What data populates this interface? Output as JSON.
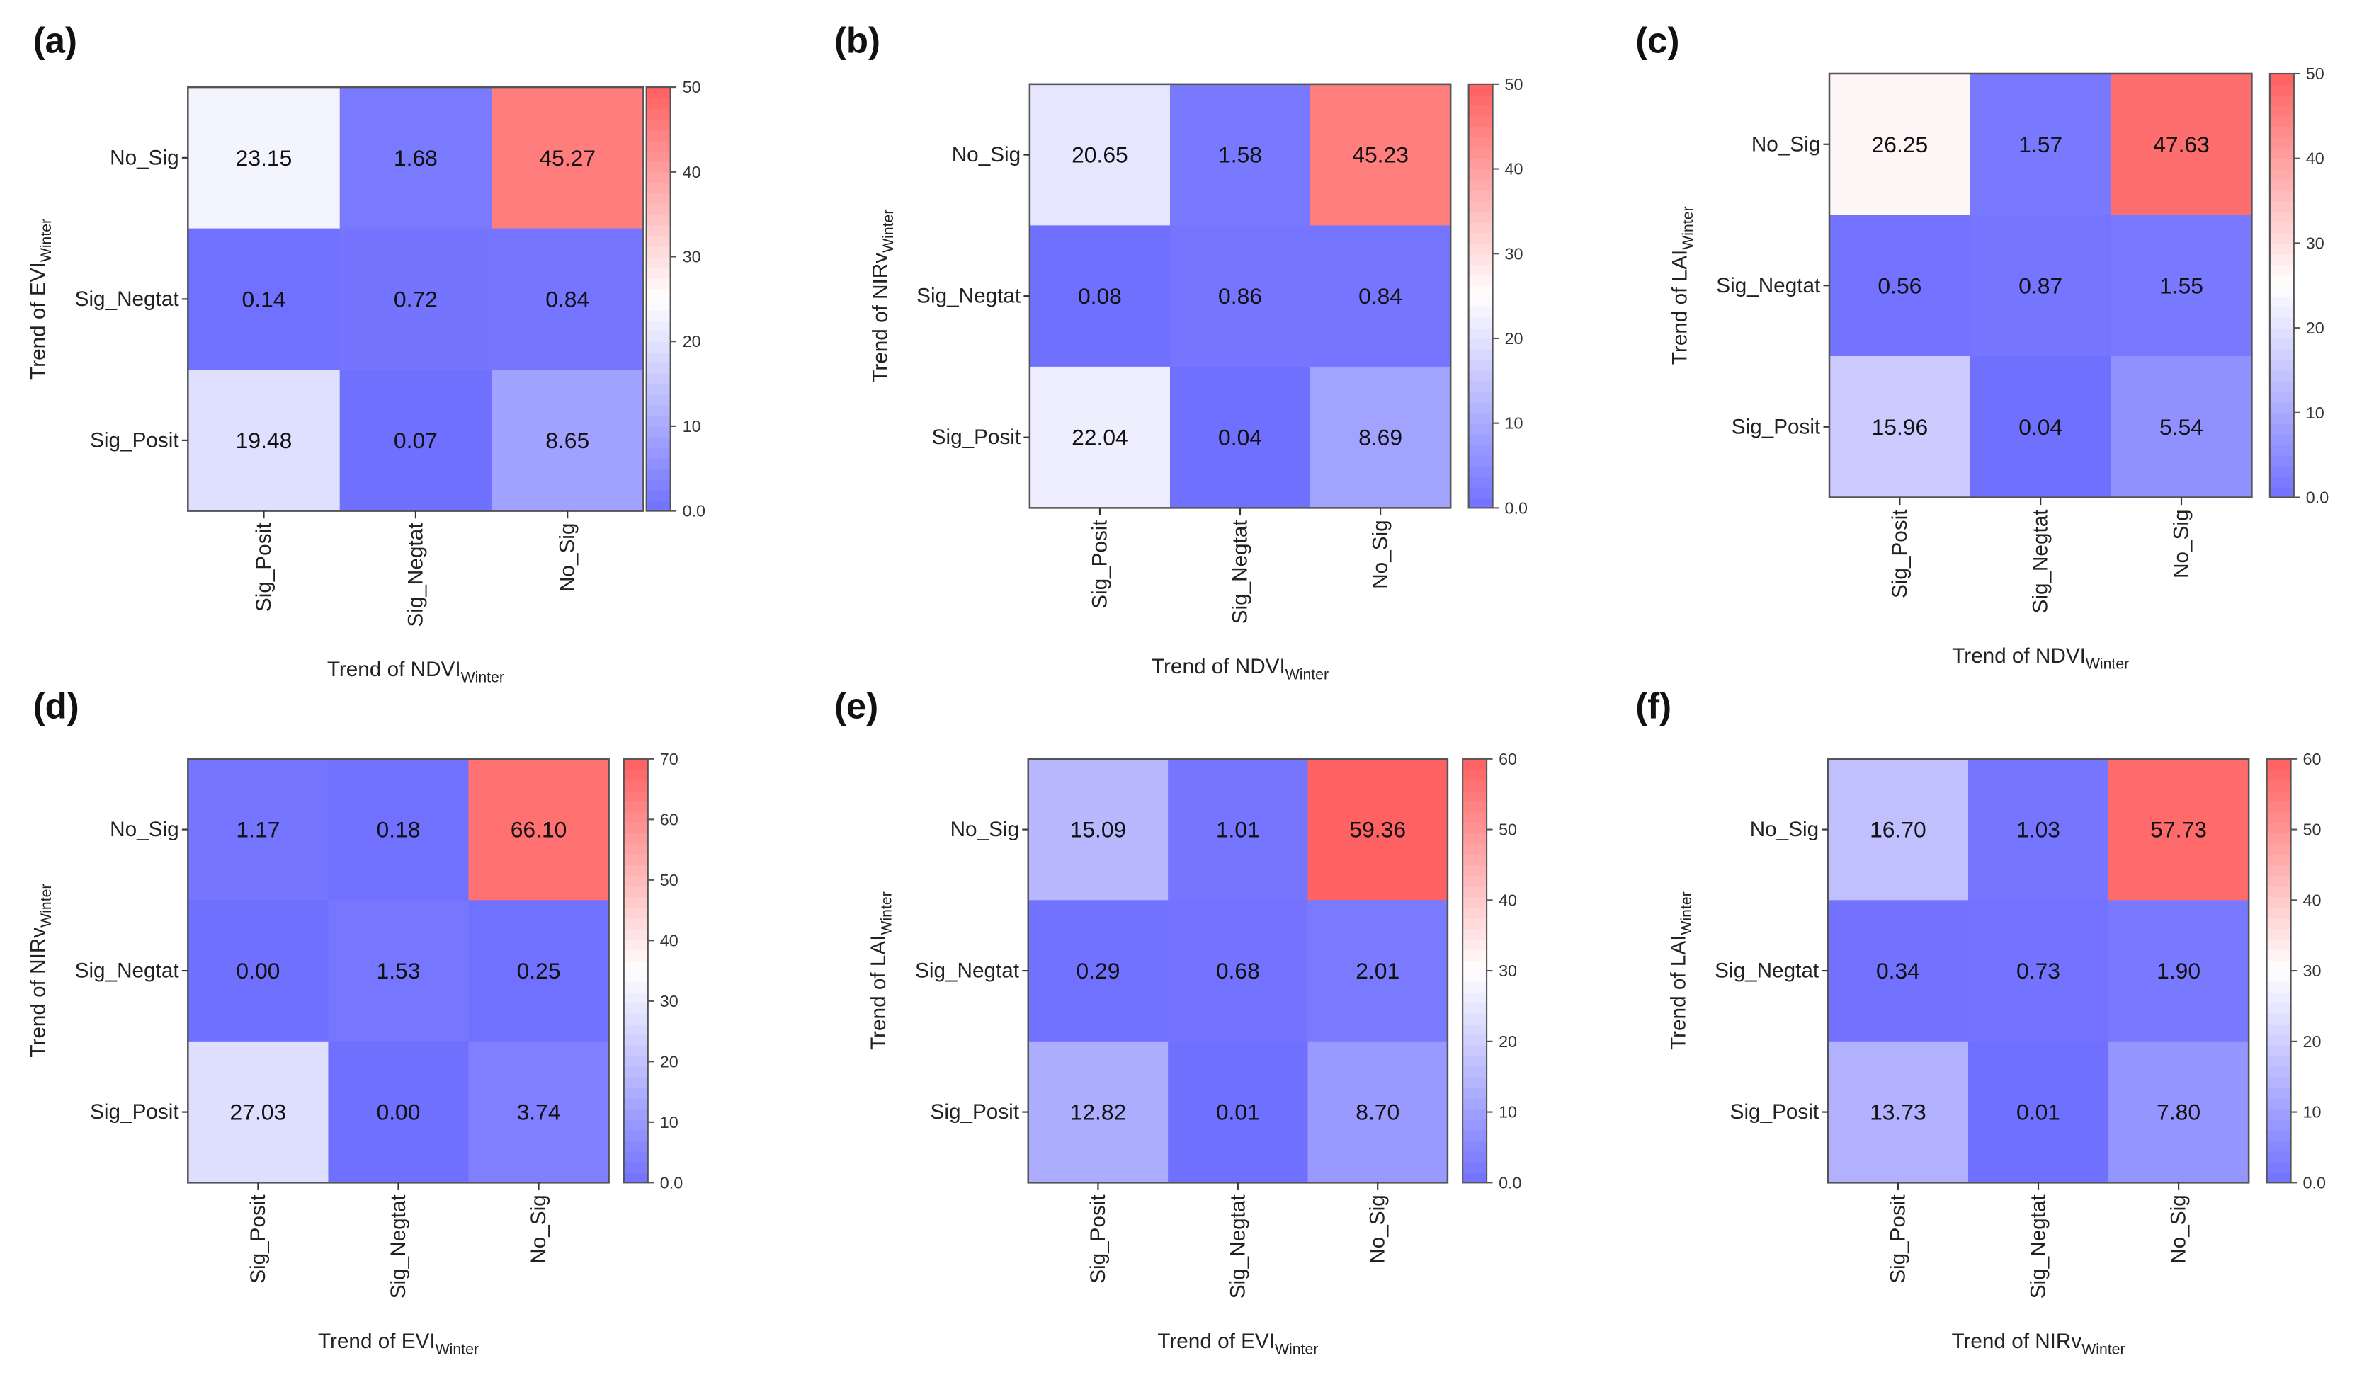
{
  "chart_data": [
    {
      "type": "heatmap",
      "panel_label": "(a)",
      "ylabel": {
        "main": "Trend of EVI",
        "sub": "Winter"
      },
      "xlabel": {
        "main": "Trend of NDVI",
        "sub": "Winter"
      },
      "rows": [
        "No_Sig",
        "Sig_Negtat",
        "Sig_Posit"
      ],
      "cols": [
        "Sig_Posit",
        "Sig_Negtat",
        "No_Sig"
      ],
      "values": [
        [
          23.15,
          1.68,
          45.27
        ],
        [
          0.14,
          0.72,
          0.84
        ],
        [
          19.48,
          0.07,
          8.65
        ]
      ],
      "labels": [
        [
          "23.15",
          "1.68",
          "45.27"
        ],
        [
          "0.14",
          "0.72",
          "0.84"
        ],
        [
          "19.48",
          "0.07",
          "8.65"
        ]
      ],
      "colorbar": {
        "range": [
          0,
          50
        ],
        "ticks": [
          "0.0",
          "10",
          "20",
          "30",
          "40",
          "50"
        ]
      }
    },
    {
      "type": "heatmap",
      "panel_label": "(b)",
      "ylabel": {
        "main": "Trend of NIRv",
        "sub": "Winter"
      },
      "xlabel": {
        "main": "Trend of NDVI",
        "sub": "Winter"
      },
      "rows": [
        "No_Sig",
        "Sig_Negtat",
        "Sig_Posit"
      ],
      "cols": [
        "Sig_Posit",
        "Sig_Negtat",
        "No_Sig"
      ],
      "values": [
        [
          20.65,
          1.58,
          45.23
        ],
        [
          0.08,
          0.86,
          0.84
        ],
        [
          22.04,
          0.04,
          8.69
        ]
      ],
      "labels": [
        [
          "20.65",
          "1.58",
          "45.23"
        ],
        [
          "0.08",
          "0.86",
          "0.84"
        ],
        [
          "22.04",
          "0.04",
          "8.69"
        ]
      ],
      "colorbar": {
        "range": [
          0,
          50
        ],
        "ticks": [
          "0.0",
          "10",
          "20",
          "30",
          "40",
          "50"
        ]
      }
    },
    {
      "type": "heatmap",
      "panel_label": "(c)",
      "ylabel": {
        "main": "Trend of LAI",
        "sub": "Winter"
      },
      "xlabel": {
        "main": "Trend of NDVI",
        "sub": "Winter"
      },
      "rows": [
        "No_Sig",
        "Sig_Negtat",
        "Sig_Posit"
      ],
      "cols": [
        "Sig_Posit",
        "Sig_Negtat",
        "No_Sig"
      ],
      "values": [
        [
          26.25,
          1.57,
          47.63
        ],
        [
          0.56,
          0.87,
          1.55
        ],
        [
          15.96,
          0.04,
          5.54
        ]
      ],
      "labels": [
        [
          "26.25",
          "1.57",
          "47.63"
        ],
        [
          "0.56",
          "0.87",
          "1.55"
        ],
        [
          "15.96",
          "0.04",
          "5.54"
        ]
      ],
      "colorbar": {
        "range": [
          0,
          50
        ],
        "ticks": [
          "0.0",
          "10",
          "20",
          "30",
          "40",
          "50"
        ]
      }
    },
    {
      "type": "heatmap",
      "panel_label": "(d)",
      "ylabel": {
        "main": "Trend of NIRv",
        "sub": "Winter"
      },
      "xlabel": {
        "main": "Trend of EVI",
        "sub": "Winter"
      },
      "rows": [
        "No_Sig",
        "Sig_Negtat",
        "Sig_Posit"
      ],
      "cols": [
        "Sig_Posit",
        "Sig_Negtat",
        "No_Sig"
      ],
      "values": [
        [
          1.17,
          0.18,
          66.1
        ],
        [
          0.0,
          1.53,
          0.25
        ],
        [
          27.03,
          0.0,
          3.74
        ]
      ],
      "labels": [
        [
          "1.17",
          "0.18",
          "66.10"
        ],
        [
          "0.00",
          "1.53",
          "0.25"
        ],
        [
          "27.03",
          "0.00",
          "3.74"
        ]
      ],
      "colorbar": {
        "range": [
          0,
          70
        ],
        "ticks": [
          "0.0",
          "10",
          "20",
          "30",
          "40",
          "50",
          "60",
          "70"
        ]
      }
    },
    {
      "type": "heatmap",
      "panel_label": "(e)",
      "ylabel": {
        "main": "Trend of LAI",
        "sub": "Winter"
      },
      "xlabel": {
        "main": "Trend of EVI",
        "sub": "Winter"
      },
      "rows": [
        "No_Sig",
        "Sig_Negtat",
        "Sig_Posit"
      ],
      "cols": [
        "Sig_Posit",
        "Sig_Negtat",
        "No_Sig"
      ],
      "values": [
        [
          15.09,
          1.01,
          59.36
        ],
        [
          0.29,
          0.68,
          2.01
        ],
        [
          12.82,
          0.01,
          8.7
        ]
      ],
      "labels": [
        [
          "15.09",
          "1.01",
          "59.36"
        ],
        [
          "0.29",
          "0.68",
          "2.01"
        ],
        [
          "12.82",
          "0.01",
          "8.70"
        ]
      ],
      "colorbar": {
        "range": [
          0,
          60
        ],
        "ticks": [
          "0.0",
          "10",
          "20",
          "30",
          "40",
          "50",
          "60"
        ]
      }
    },
    {
      "type": "heatmap",
      "panel_label": "(f)",
      "ylabel": {
        "main": "Trend of LAI",
        "sub": "Winter"
      },
      "xlabel": {
        "main": "Trend of NIRv",
        "sub": "Winter"
      },
      "rows": [
        "No_Sig",
        "Sig_Negtat",
        "Sig_Posit"
      ],
      "cols": [
        "Sig_Posit",
        "Sig_Negtat",
        "No_Sig"
      ],
      "values": [
        [
          16.7,
          1.03,
          57.73
        ],
        [
          0.34,
          0.73,
          1.9
        ],
        [
          13.73,
          0.01,
          7.8
        ]
      ],
      "labels": [
        [
          "16.70",
          "1.03",
          "57.73"
        ],
        [
          "0.34",
          "0.73",
          "1.90"
        ],
        [
          "13.73",
          "0.01",
          "7.80"
        ]
      ],
      "colorbar": {
        "range": [
          0,
          60
        ],
        "ticks": [
          "0.0",
          "10",
          "20",
          "30",
          "40",
          "50",
          "60"
        ]
      }
    }
  ],
  "colors": {
    "low": "#7070ff",
    "mid": "#ffffff",
    "high": "#ff5f5f"
  }
}
